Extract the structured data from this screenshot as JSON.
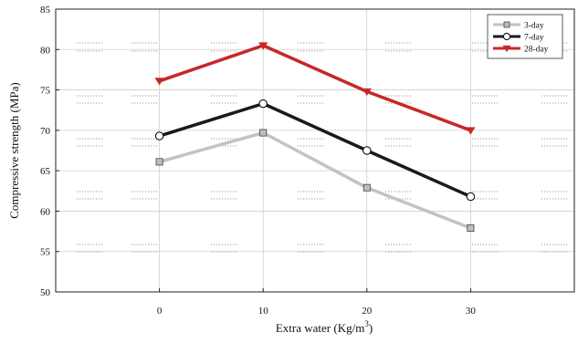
{
  "chart_data": {
    "type": "line",
    "title": "",
    "xlabel": "Extra water (Kg/m",
    "xlabel_superscript": "3",
    "xlabel_suffix": ")",
    "ylabel": "Compressive strength (MPa)",
    "x": [
      0,
      10,
      20,
      30
    ],
    "x_tick_labels": [
      "0",
      "10",
      "20",
      "30"
    ],
    "xlim": [
      -10,
      40
    ],
    "ylim": [
      50,
      85
    ],
    "y_ticks": [
      50,
      55,
      60,
      65,
      70,
      75,
      80,
      85
    ],
    "y_tick_labels": [
      "50",
      "55",
      "60",
      "65",
      "70",
      "75",
      "80",
      "85"
    ],
    "grid": true,
    "legend_position": "top-right",
    "series": [
      {
        "name": "3-day",
        "values": [
          66.1,
          69.7,
          62.9,
          57.9
        ],
        "color": "#c3c3c3",
        "marker": "square"
      },
      {
        "name": "7-day",
        "values": [
          69.3,
          73.3,
          67.5,
          61.8
        ],
        "color": "#1a1a1a",
        "marker": "circle"
      },
      {
        "name": "28-day",
        "values": [
          76.1,
          80.5,
          74.8,
          70.0
        ],
        "color": "#c62828",
        "marker": "triangle-down"
      }
    ]
  }
}
